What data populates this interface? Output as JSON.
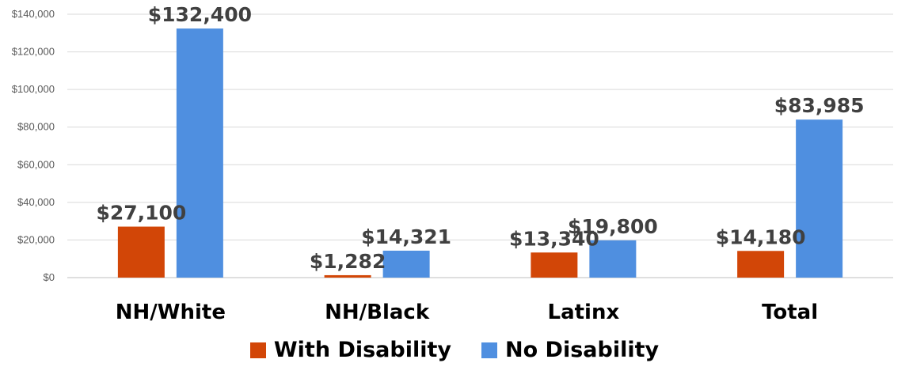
{
  "chart_data": {
    "type": "bar",
    "categories": [
      "NH/White",
      "NH/Black",
      "Latinx",
      "Total"
    ],
    "series": [
      {
        "name": "With Disability",
        "color": "#D24607",
        "values": [
          27100,
          1282,
          13340,
          14180
        ],
        "labels": [
          "$27,100",
          "$1,282",
          "$13,340",
          "$14,180"
        ]
      },
      {
        "name": "No Disability",
        "color": "#4F8FE0",
        "values": [
          132400,
          14321,
          19800,
          83985
        ],
        "labels": [
          "$132,400",
          "$14,321",
          "$19,800",
          "$83,985"
        ]
      }
    ],
    "ylim": [
      0,
      140000
    ],
    "yticks": [
      0,
      20000,
      40000,
      60000,
      80000,
      100000,
      120000,
      140000
    ],
    "ytick_labels": [
      "$0",
      "$20,000",
      "$40,000",
      "$60,000",
      "$80,000",
      "$100,000",
      "$120,000",
      "$140,000"
    ],
    "grid": true,
    "legend_position": "bottom"
  }
}
